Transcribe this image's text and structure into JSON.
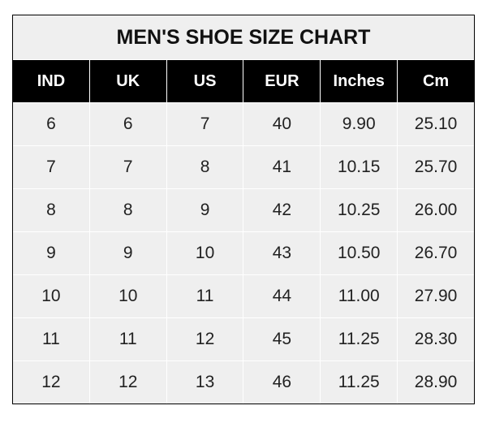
{
  "title": "MEN'S SHOE SIZE CHART",
  "columns": [
    "IND",
    "UK",
    "US",
    "EUR",
    "Inches",
    "Cm"
  ],
  "rows": [
    [
      "6",
      "6",
      "7",
      "40",
      "9.90",
      "25.10"
    ],
    [
      "7",
      "7",
      "8",
      "41",
      "10.15",
      "25.70"
    ],
    [
      "8",
      "8",
      "9",
      "42",
      "10.25",
      "26.00"
    ],
    [
      "9",
      "9",
      "10",
      "43",
      "10.50",
      "26.70"
    ],
    [
      "10",
      "10",
      "11",
      "44",
      "11.00",
      "27.90"
    ],
    [
      "11",
      "11",
      "12",
      "45",
      "11.25",
      "28.30"
    ],
    [
      "12",
      "12",
      "13",
      "46",
      "11.25",
      "28.90"
    ]
  ],
  "colors": {
    "header_bg": "#000000",
    "header_text": "#ffffff",
    "cell_bg": "#efefef"
  }
}
